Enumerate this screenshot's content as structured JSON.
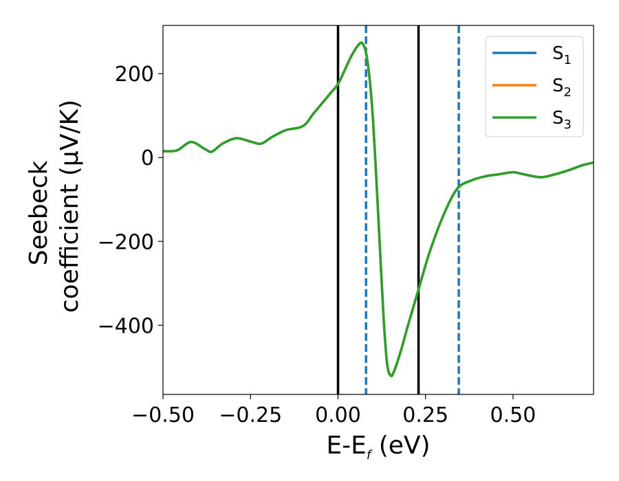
{
  "chart_data": {
    "type": "line",
    "title": "",
    "xlabel": {
      "main": "E-E",
      "sub": "f",
      "tail": " (eV)"
    },
    "ylabel": {
      "line1": "Seebeck",
      "line2": "coefficient  (μV/K)"
    },
    "xlim": [
      -0.5,
      0.73
    ],
    "ylim": [
      -565,
      315
    ],
    "xticks": [
      -0.5,
      -0.25,
      0.0,
      0.25,
      0.5
    ],
    "xtick_labels": [
      "−0.50",
      "−0.25",
      "0.00",
      "0.25",
      "0.50"
    ],
    "yticks": [
      -400,
      -200,
      0,
      200
    ],
    "ytick_labels": [
      "−400",
      "−200",
      "0",
      "200"
    ],
    "grid": false,
    "legend_position": "top-right",
    "x": [
      -0.5,
      -0.46,
      -0.42,
      -0.38,
      -0.36,
      -0.33,
      -0.29,
      -0.25,
      -0.22,
      -0.19,
      -0.15,
      -0.1,
      -0.07,
      -0.04,
      -0.02,
      0.0,
      0.02,
      0.04,
      0.06,
      0.07,
      0.08,
      0.09,
      0.1,
      0.11,
      0.12,
      0.13,
      0.14,
      0.15,
      0.16,
      0.18,
      0.2,
      0.23,
      0.26,
      0.3,
      0.34,
      0.38,
      0.42,
      0.46,
      0.5,
      0.53,
      0.58,
      0.62,
      0.66,
      0.7,
      0.73
    ],
    "series": [
      {
        "name": "S",
        "sub": "1",
        "color": "#1f77b4",
        "values": [
          15,
          17,
          37,
          20,
          14,
          33,
          46,
          38,
          33,
          48,
          65,
          75,
          105,
          135,
          155,
          175,
          210,
          245,
          270,
          272,
          250,
          190,
          90,
          -60,
          -220,
          -380,
          -490,
          -520,
          -510,
          -460,
          -400,
          -315,
          -230,
          -140,
          -75,
          -55,
          -45,
          -40,
          -35,
          -40,
          -47,
          -40,
          -30,
          -18,
          -12
        ]
      },
      {
        "name": "S",
        "sub": "2",
        "color": "#ff7f0e",
        "values": [
          15,
          17,
          37,
          20,
          14,
          33,
          46,
          38,
          33,
          48,
          65,
          75,
          105,
          135,
          155,
          175,
          210,
          245,
          270,
          272,
          250,
          190,
          90,
          -60,
          -220,
          -380,
          -490,
          -520,
          -510,
          -460,
          -400,
          -315,
          -230,
          -140,
          -75,
          -55,
          -45,
          -40,
          -35,
          -40,
          -47,
          -40,
          -30,
          -18,
          -12
        ]
      },
      {
        "name": "S",
        "sub": "3",
        "color": "#2ca02c",
        "values": [
          15,
          17,
          37,
          20,
          14,
          33,
          46,
          38,
          33,
          48,
          65,
          75,
          105,
          135,
          155,
          175,
          210,
          245,
          270,
          272,
          250,
          190,
          90,
          -60,
          -220,
          -380,
          -490,
          -520,
          -510,
          -460,
          -400,
          -315,
          -230,
          -140,
          -75,
          -55,
          -45,
          -40,
          -35,
          -40,
          -47,
          -40,
          -30,
          -18,
          -12
        ]
      }
    ],
    "vlines": [
      {
        "x": 0.0,
        "color": "#000000",
        "style": "solid"
      },
      {
        "x": 0.23,
        "color": "#000000",
        "style": "solid"
      },
      {
        "x": 0.08,
        "color": "#1f77b4",
        "style": "dashed"
      },
      {
        "x": 0.345,
        "color": "#1f77b4",
        "style": "dashed"
      }
    ]
  }
}
